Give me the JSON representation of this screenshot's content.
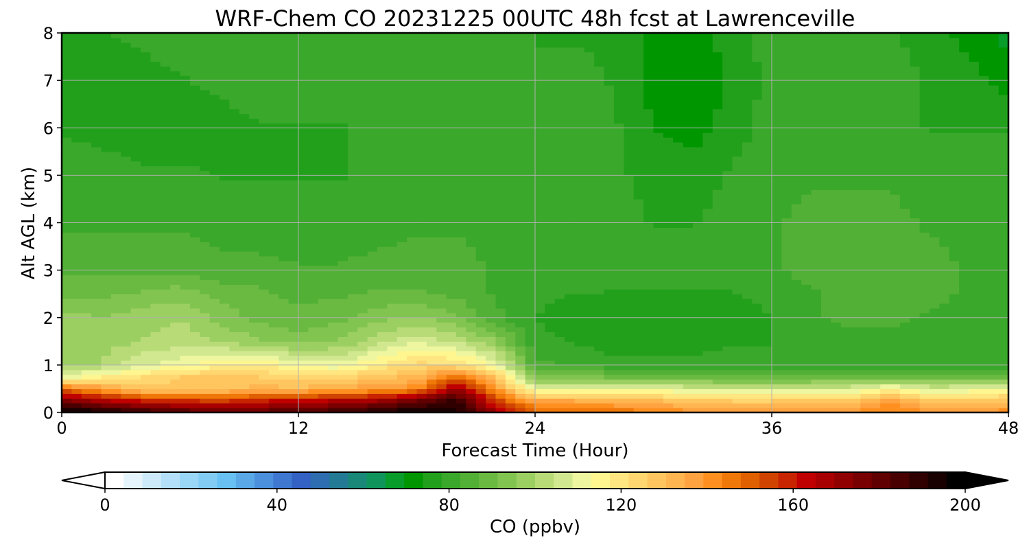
{
  "chart_data": {
    "type": "heatmap",
    "title": "WRF-Chem CO  20231225 00UTC 48h fcst at Lawrenceville",
    "xlabel": "Forecast Time (Hour)",
    "ylabel": "Alt AGL (km)",
    "xlim": [
      0,
      48
    ],
    "ylim": [
      0,
      8
    ],
    "xticks": [
      "0",
      "12",
      "24",
      "36",
      "48"
    ],
    "yticks": [
      "0",
      "1",
      "2",
      "3",
      "4",
      "5",
      "6",
      "7",
      "8"
    ],
    "grid": true,
    "colorbar": {
      "label": "CO  (ppbv)",
      "min": 0,
      "max": 200,
      "ticks": [
        "0",
        "40",
        "80",
        "120",
        "160",
        "200"
      ],
      "extend": "both",
      "colors": [
        "#ffffff",
        "#e6f4fc",
        "#cdeafa",
        "#b3e0f8",
        "#9ad6f6",
        "#82ccf4",
        "#68c1f2",
        "#5aa8e6",
        "#4a90dc",
        "#3e78d0",
        "#3462c4",
        "#2d6db0",
        "#237a94",
        "#198878",
        "#0f955c",
        "#089c2a",
        "#009600",
        "#22a01c",
        "#3aa82a",
        "#52b036",
        "#6aba42",
        "#82c450",
        "#9ccf62",
        "#b8db78",
        "#d2e890",
        "#eef6a0",
        "#fff690",
        "#ffe680",
        "#ffd670",
        "#ffc660",
        "#ffb550",
        "#ffa240",
        "#ff9020",
        "#f07808",
        "#e06000",
        "#d04400",
        "#c82400",
        "#c00000",
        "#a80000",
        "#900000",
        "#780000",
        "#600000",
        "#480000",
        "#300000",
        "#180000",
        "#000000"
      ]
    },
    "x": [
      0,
      2,
      4,
      6,
      8,
      10,
      12,
      14,
      16,
      18,
      20,
      22,
      24,
      26,
      28,
      30,
      32,
      34,
      36,
      38,
      40,
      42,
      44,
      46,
      48
    ],
    "y": [
      0,
      0.25,
      0.5,
      0.75,
      1.0,
      1.5,
      2.0,
      2.5,
      3.0,
      4.0,
      5.0,
      6.0,
      7.0,
      8.0
    ],
    "z": [
      [
        200,
        195,
        190,
        185,
        180,
        182,
        184,
        188,
        192,
        198,
        195,
        170,
        150,
        150,
        148,
        145,
        140,
        138,
        138,
        138,
        140,
        145,
        140,
        140,
        142
      ],
      [
        175,
        168,
        160,
        158,
        155,
        160,
        163,
        166,
        170,
        178,
        190,
        155,
        135,
        135,
        133,
        131,
        128,
        126,
        126,
        127,
        128,
        138,
        128,
        129,
        130
      ],
      [
        148,
        138,
        128,
        128,
        128,
        132,
        132,
        135,
        138,
        142,
        170,
        140,
        110,
        112,
        112,
        110,
        108,
        106,
        106,
        107,
        108,
        115,
        108,
        109,
        110
      ],
      [
        110,
        118,
        122,
        126,
        128,
        126,
        122,
        124,
        128,
        132,
        150,
        128,
        92,
        92,
        91,
        90,
        88,
        88,
        88,
        88,
        89,
        90,
        88,
        88,
        89
      ],
      [
        98,
        100,
        108,
        112,
        116,
        118,
        112,
        110,
        118,
        124,
        122,
        112,
        84,
        82,
        80,
        80,
        80,
        80,
        80,
        80,
        80,
        80,
        80,
        80,
        80
      ],
      [
        96,
        98,
        100,
        102,
        100,
        96,
        94,
        96,
        102,
        108,
        104,
        96,
        80,
        78,
        76,
        76,
        76,
        78,
        78,
        80,
        80,
        80,
        80,
        80,
        80
      ],
      [
        98,
        96,
        98,
        100,
        94,
        90,
        88,
        90,
        94,
        96,
        92,
        84,
        78,
        76,
        74,
        74,
        74,
        76,
        78,
        82,
        84,
        84,
        82,
        80,
        80
      ],
      [
        90,
        90,
        92,
        94,
        90,
        88,
        86,
        86,
        88,
        88,
        86,
        82,
        80,
        78,
        78,
        78,
        78,
        78,
        80,
        82,
        84,
        86,
        84,
        82,
        80
      ],
      [
        86,
        86,
        86,
        86,
        84,
        84,
        83,
        83,
        84,
        84,
        84,
        82,
        82,
        82,
        80,
        80,
        80,
        80,
        82,
        84,
        84,
        86,
        84,
        82,
        82
      ],
      [
        82,
        82,
        82,
        82,
        81,
        80,
        80,
        80,
        81,
        82,
        82,
        82,
        82,
        82,
        80,
        78,
        78,
        80,
        82,
        84,
        84,
        84,
        82,
        82,
        82
      ],
      [
        80,
        80,
        79,
        79,
        78,
        78,
        78,
        78,
        79,
        80,
        80,
        81,
        81,
        81,
        79,
        77,
        76,
        79,
        81,
        82,
        82,
        82,
        80,
        80,
        80
      ],
      [
        78,
        77,
        76,
        76,
        77,
        78,
        78,
        78,
        79,
        80,
        80,
        80,
        80,
        80,
        79,
        74,
        72,
        76,
        80,
        81,
        81,
        80,
        78,
        78,
        78
      ],
      [
        76,
        76,
        77,
        78,
        79,
        80,
        80,
        80,
        80,
        80,
        80,
        80,
        79,
        79,
        78,
        72,
        70,
        75,
        80,
        81,
        80,
        80,
        78,
        76,
        72
      ],
      [
        78,
        78,
        79,
        80,
        81,
        82,
        82,
        80,
        80,
        80,
        80,
        80,
        78,
        78,
        78,
        73,
        72,
        76,
        80,
        81,
        80,
        79,
        76,
        72,
        68
      ]
    ]
  }
}
